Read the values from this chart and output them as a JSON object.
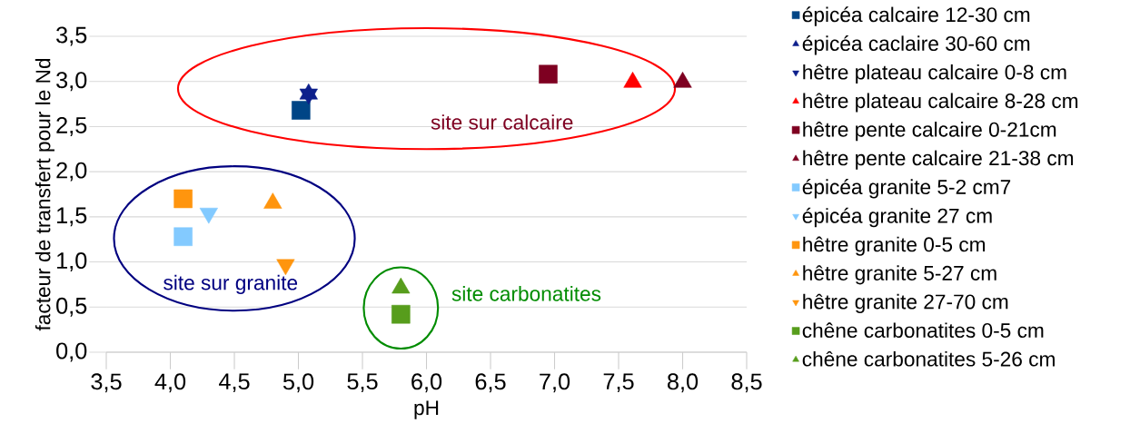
{
  "chart_data": {
    "type": "scatter",
    "xlabel": "pH",
    "ylabel": "facteur de transfert pour le Nd",
    "xlim": [
      3.5,
      8.5
    ],
    "xticks": [
      {
        "value": 3.5,
        "label": "3,5"
      },
      {
        "value": 4.0,
        "label": "4,0"
      },
      {
        "value": 4.5,
        "label": "4,5"
      },
      {
        "value": 5.0,
        "label": "5,0"
      },
      {
        "value": 5.5,
        "label": "5,5"
      },
      {
        "value": 6.0,
        "label": "6,0"
      },
      {
        "value": 6.5,
        "label": "6,5"
      },
      {
        "value": 7.0,
        "label": "7,0"
      },
      {
        "value": 7.5,
        "label": "7,5"
      },
      {
        "value": 8.0,
        "label": "8,0"
      },
      {
        "value": 8.5,
        "label": "8,5"
      }
    ],
    "ylim": [
      0,
      3.5
    ],
    "yticks": [
      {
        "value": 0.0,
        "label": "0,0"
      },
      {
        "value": 0.5,
        "label": "0,5"
      },
      {
        "value": 1.0,
        "label": "1,0"
      },
      {
        "value": 1.5,
        "label": "1,5"
      },
      {
        "value": 2.0,
        "label": "2,0"
      },
      {
        "value": 2.5,
        "label": "2,5"
      },
      {
        "value": 3.0,
        "label": "3,0"
      },
      {
        "value": 3.5,
        "label": "3,5"
      }
    ],
    "grid": "y",
    "legend": "right",
    "series": [
      {
        "name": "épicéa calcaire  12-30 cm",
        "color": "#004586",
        "marker": "square",
        "x": [
          5.02
        ],
        "values": [
          2.68
        ]
      },
      {
        "name": "épicéa caclaire 30-60 cm",
        "color": "#0d1f8c",
        "marker": "triangle",
        "x": [
          5.08
        ],
        "values": [
          2.86
        ]
      },
      {
        "name": "hêtre plateau calcaire 0-8 cm",
        "color": "#0d1f8c",
        "marker": "triangle-down",
        "x": [
          5.08
        ],
        "values": [
          2.86
        ]
      },
      {
        "name": "hêtre plateau calcaire 8-28 cm",
        "color": "#ff0000",
        "marker": "triangle",
        "x": [
          7.61
        ],
        "values": [
          2.99
        ]
      },
      {
        "name": "hêtre pente calcaire 0-21cm",
        "color": "#7e0021",
        "marker": "square",
        "x": [
          6.95
        ],
        "values": [
          3.08
        ]
      },
      {
        "name": "hêtre pente calcaire 21-38 cm",
        "color": "#7e0021",
        "marker": "triangle",
        "x": [
          8.0
        ],
        "values": [
          2.99
        ]
      },
      {
        "name": "épicéa granite 5-2 cm7",
        "color": "#83caff",
        "marker": "square",
        "x": [
          4.1
        ],
        "values": [
          1.28
        ]
      },
      {
        "name": "épicéa granite 27 cm",
        "color": "#83caff",
        "marker": "triangle-down",
        "x": [
          4.3
        ],
        "values": [
          1.54
        ]
      },
      {
        "name": "hêtre granite 0-5 cm",
        "color": "#ff950e",
        "marker": "square",
        "x": [
          4.1
        ],
        "values": [
          1.7
        ]
      },
      {
        "name": "hêtre granite 5-27 cm",
        "color": "#ff950e",
        "marker": "triangle",
        "x": [
          4.8
        ],
        "values": [
          1.65
        ]
      },
      {
        "name": "hêtre granite 27-70 cm",
        "color": "#ff950e",
        "marker": "triangle-down",
        "x": [
          4.9
        ],
        "values": [
          0.97
        ]
      },
      {
        "name": "chêne carbonatites 0-5 cm",
        "color": "#579d1c",
        "marker": "square",
        "x": [
          5.8
        ],
        "values": [
          0.42
        ]
      },
      {
        "name": "chêne carbonatites 5-26 cm",
        "color": "#579d1c",
        "marker": "triangle",
        "x": [
          5.8
        ],
        "values": [
          0.71
        ]
      }
    ],
    "annotations": [
      "site sur calcaire",
      "site sur granite",
      "site carbonatites"
    ]
  }
}
